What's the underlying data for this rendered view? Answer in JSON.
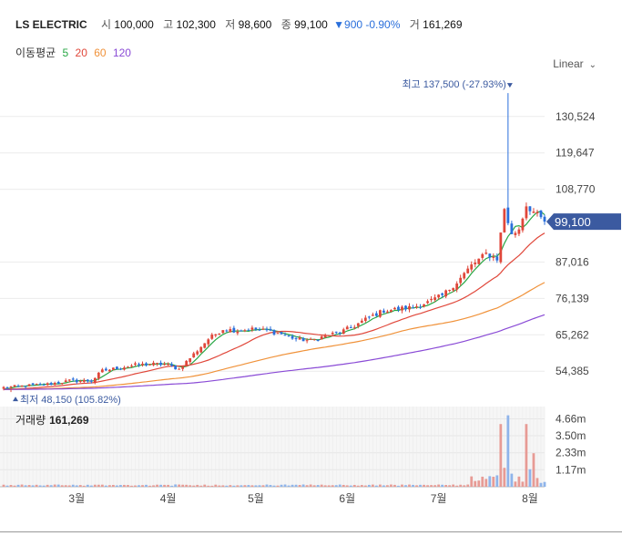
{
  "header": {
    "name": "LS ELECTRIC",
    "open_label": "시",
    "open": "100,000",
    "high_label": "고",
    "high": "102,300",
    "low_label": "저",
    "low": "98,600",
    "close_label": "종",
    "close": "99,100",
    "change": "▼900 -0.90%",
    "volume_label": "거",
    "volume": "161,269"
  },
  "ma": {
    "label": "이동평균",
    "items": [
      {
        "period": "5",
        "color": "#28a745"
      },
      {
        "period": "20",
        "color": "#e0473a"
      },
      {
        "period": "60",
        "color": "#f0923a"
      },
      {
        "period": "120",
        "color": "#8a4bd6"
      }
    ]
  },
  "scale": {
    "label": "Linear",
    "icon": "chevron-down-icon"
  },
  "volume_panel": {
    "label": "거래량",
    "value": "161,269"
  },
  "colors": {
    "up": "#e0473a",
    "down": "#2a6fdb",
    "badge": "#3b5aa0"
  },
  "chart_data": {
    "type": "candlestick",
    "y_ticks": [
      "130,524",
      "119,647",
      "108,770",
      "87,016",
      "76,139",
      "65,262",
      "54,385"
    ],
    "y_tick_values": [
      130524,
      119647,
      108770,
      87016,
      76139,
      65262,
      54385
    ],
    "ylim": [
      46000,
      143000
    ],
    "x_ticks": [
      "3월",
      "4월",
      "5월",
      "6월",
      "7월",
      "8월"
    ],
    "x_tick_days": [
      20,
      45,
      69,
      94,
      119,
      144
    ],
    "day_range": [
      0,
      148
    ],
    "current_price": {
      "value": 99100,
      "label": "99,100"
    },
    "high_marker": {
      "label": "최고 137,500 (-27.93%)",
      "value": 137500,
      "day": 138
    },
    "low_marker": {
      "label": "최저 48,150 (105.82%)",
      "value": 48150,
      "day": 2
    },
    "waypoints": [
      [
        0,
        49500
      ],
      [
        6,
        50000
      ],
      [
        12,
        50500
      ],
      [
        18,
        51500
      ],
      [
        24,
        51500
      ],
      [
        27,
        54500
      ],
      [
        32,
        55500
      ],
      [
        36,
        56200
      ],
      [
        40,
        56500
      ],
      [
        44,
        56500
      ],
      [
        48,
        55000
      ],
      [
        52,
        59500
      ],
      [
        56,
        64000
      ],
      [
        60,
        67000
      ],
      [
        64,
        66500
      ],
      [
        68,
        67000
      ],
      [
        72,
        66500
      ],
      [
        76,
        65500
      ],
      [
        80,
        64000
      ],
      [
        84,
        63500
      ],
      [
        88,
        65000
      ],
      [
        92,
        66000
      ],
      [
        96,
        68000
      ],
      [
        100,
        70500
      ],
      [
        104,
        72500
      ],
      [
        108,
        73000
      ],
      [
        112,
        73500
      ],
      [
        116,
        75000
      ],
      [
        120,
        77000
      ],
      [
        124,
        81000
      ],
      [
        128,
        86000
      ],
      [
        132,
        89500
      ],
      [
        135,
        88000
      ],
      [
        137,
        103000
      ],
      [
        139,
        95000
      ],
      [
        141,
        97000
      ],
      [
        143,
        104000
      ],
      [
        146,
        101000
      ],
      [
        148,
        99100
      ]
    ],
    "ma_series": [
      {
        "name": "MA5",
        "period": 5,
        "color": "#28a745"
      },
      {
        "name": "MA20",
        "period": 20,
        "color": "#e0473a"
      },
      {
        "name": "MA60",
        "period": 60,
        "color": "#f0923a"
      },
      {
        "name": "MA120",
        "period": 120,
        "color": "#8a4bd6"
      }
    ],
    "volume_ticks": [
      "4.66m",
      "3.50m",
      "2.33m",
      "1.17m"
    ],
    "volume_tick_values": [
      4660000,
      3500000,
      2330000,
      1170000
    ],
    "volume_max": 5500000
  }
}
